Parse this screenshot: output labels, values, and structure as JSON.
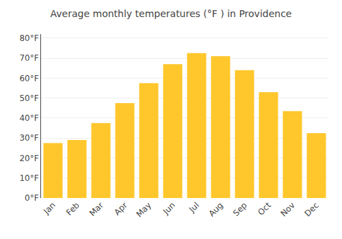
{
  "chart_data": {
    "type": "bar",
    "title": "Average monthly temperatures (°F ) in Providence",
    "categories": [
      "Jan",
      "Feb",
      "Mar",
      "Apr",
      "May",
      "Jun",
      "Jul",
      "Aug",
      "Sep",
      "Oct",
      "Nov",
      "Dec"
    ],
    "values": [
      27.5,
      29.0,
      37.5,
      47.5,
      57.5,
      67.0,
      72.5,
      71.0,
      64.0,
      53.0,
      43.5,
      32.5
    ],
    "color": "#FFC72C",
    "ylim": [
      0,
      82
    ],
    "yticks": [
      {
        "value": 0,
        "label": "0°F"
      },
      {
        "value": 10,
        "label": "10°F"
      },
      {
        "value": 20,
        "label": "20°F"
      },
      {
        "value": 30,
        "label": "30°F"
      },
      {
        "value": 40,
        "label": "40°F"
      },
      {
        "value": 50,
        "label": "50°F"
      },
      {
        "value": 60,
        "label": "60°F"
      },
      {
        "value": 70,
        "label": "70°F"
      },
      {
        "value": 80,
        "label": "80°F"
      }
    ],
    "grid": true
  }
}
